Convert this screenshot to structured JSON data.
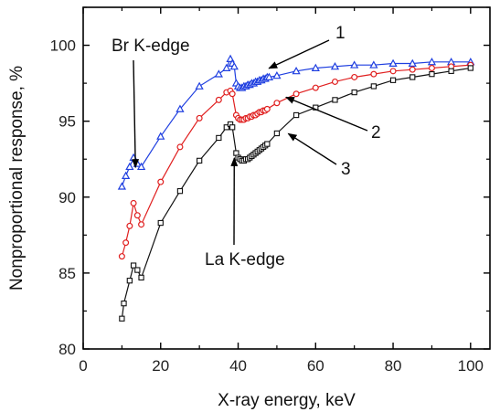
{
  "chart_data": {
    "type": "line",
    "xlabel": "X-ray energy, keV",
    "ylabel": "Nonproportional response, %",
    "xlim": [
      0,
      105
    ],
    "ylim": [
      80,
      102.5
    ],
    "x_ticks": [
      0,
      20,
      40,
      60,
      80,
      100
    ],
    "y_ticks": [
      80,
      85,
      90,
      95,
      100
    ],
    "grid": false,
    "series": [
      {
        "label": "1",
        "color": "#1f3fe0",
        "marker": "triangle",
        "points": [
          [
            10,
            90.7
          ],
          [
            11,
            91.4
          ],
          [
            12,
            92.0
          ],
          [
            13,
            92.6
          ],
          [
            14,
            92.2
          ],
          [
            15,
            92.0
          ],
          [
            20,
            94.0
          ],
          [
            25,
            95.8
          ],
          [
            30,
            97.3
          ],
          [
            35,
            98.1
          ],
          [
            37,
            98.5
          ],
          [
            38,
            99.1
          ],
          [
            38.5,
            98.8
          ],
          [
            39,
            98.6
          ],
          [
            39.5,
            97.5
          ],
          [
            40,
            97.3
          ],
          [
            40.5,
            97.2
          ],
          [
            41,
            97.2
          ],
          [
            41.5,
            97.3
          ],
          [
            42,
            97.3
          ],
          [
            42.5,
            97.4
          ],
          [
            43,
            97.4
          ],
          [
            43.5,
            97.5
          ],
          [
            44,
            97.5
          ],
          [
            44.5,
            97.6
          ],
          [
            45,
            97.6
          ],
          [
            45.5,
            97.7
          ],
          [
            46,
            97.7
          ],
          [
            46.5,
            97.8
          ],
          [
            47,
            97.8
          ],
          [
            47.5,
            97.9
          ],
          [
            48,
            97.9
          ],
          [
            50,
            98.0
          ],
          [
            55,
            98.3
          ],
          [
            60,
            98.5
          ],
          [
            65,
            98.6
          ],
          [
            70,
            98.7
          ],
          [
            75,
            98.7
          ],
          [
            80,
            98.8
          ],
          [
            85,
            98.8
          ],
          [
            90,
            98.9
          ],
          [
            95,
            98.9
          ],
          [
            100,
            98.9
          ]
        ]
      },
      {
        "label": "2",
        "color": "#e01f1f",
        "marker": "circle",
        "points": [
          [
            10,
            86.1
          ],
          [
            11,
            87.0
          ],
          [
            12,
            88.1
          ],
          [
            13,
            89.6
          ],
          [
            14,
            88.8
          ],
          [
            15,
            88.2
          ],
          [
            20,
            91.0
          ],
          [
            25,
            93.3
          ],
          [
            30,
            95.2
          ],
          [
            35,
            96.4
          ],
          [
            37,
            96.9
          ],
          [
            38,
            97.0
          ],
          [
            38.5,
            96.8
          ],
          [
            39.5,
            95.4
          ],
          [
            40,
            95.2
          ],
          [
            40.5,
            95.1
          ],
          [
            41,
            95.1
          ],
          [
            41.5,
            95.1
          ],
          [
            42,
            95.2
          ],
          [
            42.5,
            95.2
          ],
          [
            43,
            95.3
          ],
          [
            43.5,
            95.3
          ],
          [
            44,
            95.4
          ],
          [
            44.5,
            95.4
          ],
          [
            45,
            95.5
          ],
          [
            45.5,
            95.6
          ],
          [
            46,
            95.6
          ],
          [
            46.5,
            95.7
          ],
          [
            47,
            95.7
          ],
          [
            47.5,
            95.8
          ],
          [
            50,
            96.2
          ],
          [
            55,
            96.8
          ],
          [
            60,
            97.2
          ],
          [
            65,
            97.6
          ],
          [
            70,
            97.9
          ],
          [
            75,
            98.1
          ],
          [
            80,
            98.3
          ],
          [
            85,
            98.4
          ],
          [
            90,
            98.5
          ],
          [
            95,
            98.6
          ],
          [
            100,
            98.7
          ]
        ]
      },
      {
        "label": "3",
        "color": "#111111",
        "marker": "square",
        "points": [
          [
            10,
            82.0
          ],
          [
            10.5,
            83.0
          ],
          [
            12,
            84.5
          ],
          [
            13,
            85.5
          ],
          [
            14,
            85.2
          ],
          [
            15,
            84.7
          ],
          [
            20,
            88.3
          ],
          [
            25,
            90.4
          ],
          [
            30,
            92.4
          ],
          [
            35,
            93.9
          ],
          [
            37,
            94.6
          ],
          [
            38,
            94.8
          ],
          [
            38.5,
            94.6
          ],
          [
            39.5,
            92.9
          ],
          [
            40,
            92.6
          ],
          [
            40.5,
            92.5
          ],
          [
            41,
            92.4
          ],
          [
            41.5,
            92.4
          ],
          [
            42,
            92.5
          ],
          [
            42.5,
            92.5
          ],
          [
            43,
            92.6
          ],
          [
            43.5,
            92.7
          ],
          [
            44,
            92.8
          ],
          [
            44.5,
            92.9
          ],
          [
            45,
            93.0
          ],
          [
            45.5,
            93.1
          ],
          [
            46,
            93.2
          ],
          [
            46.5,
            93.3
          ],
          [
            47,
            93.4
          ],
          [
            47.5,
            93.5
          ],
          [
            50,
            94.2
          ],
          [
            55,
            95.4
          ],
          [
            60,
            95.9
          ],
          [
            65,
            96.4
          ],
          [
            70,
            96.9
          ],
          [
            75,
            97.3
          ],
          [
            80,
            97.7
          ],
          [
            85,
            97.9
          ],
          [
            90,
            98.1
          ],
          [
            95,
            98.3
          ],
          [
            100,
            98.5
          ]
        ]
      }
    ],
    "annotations": [
      {
        "id": "br-k-edge",
        "text": "Br K-edge",
        "points_to": [
          13.5,
          91.6
        ]
      },
      {
        "id": "la-k-edge",
        "text": "La K-edge",
        "points_to": [
          39,
          93.3
        ]
      },
      {
        "id": "curve-1",
        "text": "1",
        "points_to": [
          47,
          98.0
        ]
      },
      {
        "id": "curve-2",
        "text": "2",
        "points_to": [
          50,
          96.7
        ]
      },
      {
        "id": "curve-3",
        "text": "3",
        "points_to": [
          52,
          94.3
        ]
      }
    ]
  }
}
